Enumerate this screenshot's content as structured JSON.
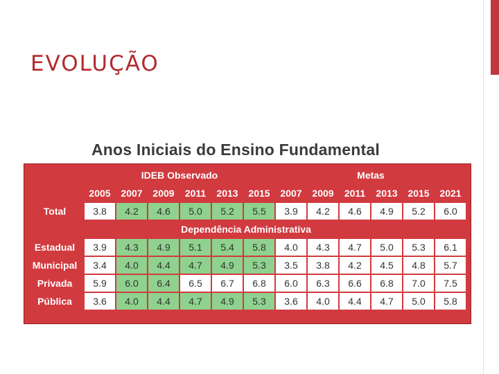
{
  "slide": {
    "title": "EVOLUÇÃO"
  },
  "table": {
    "heading": "Anos Iniciais do Ensino Fundamental",
    "group_observed": "IDEB Observado",
    "group_targets": "Metas",
    "observed_years": [
      "2005",
      "2007",
      "2009",
      "2011",
      "2013",
      "2015"
    ],
    "target_years": [
      "2007",
      "2009",
      "2011",
      "2013",
      "2015",
      "2021"
    ],
    "section_label": "Dependência Administrativa",
    "highlight_color": "#8fd18e",
    "frame_color": "#d13a3f",
    "total": {
      "label": "Total",
      "values": [
        "3.8",
        "4.2",
        "4.6",
        "5.0",
        "5.2",
        "5.5",
        "3.9",
        "4.2",
        "4.6",
        "4.9",
        "5.2",
        "6.0"
      ],
      "highlighted": [
        false,
        true,
        true,
        true,
        true,
        true,
        false,
        false,
        false,
        false,
        false,
        false
      ]
    },
    "rows": [
      {
        "label": "Estadual",
        "values": [
          "3.9",
          "4.3",
          "4.9",
          "5.1",
          "5.4",
          "5.8",
          "4.0",
          "4.3",
          "4.7",
          "5.0",
          "5.3",
          "6.1"
        ],
        "highlighted": [
          false,
          true,
          true,
          true,
          true,
          true,
          false,
          false,
          false,
          false,
          false,
          false
        ]
      },
      {
        "label": "Municipal",
        "values": [
          "3.4",
          "4.0",
          "4.4",
          "4.7",
          "4.9",
          "5.3",
          "3.5",
          "3.8",
          "4.2",
          "4.5",
          "4.8",
          "5.7"
        ],
        "highlighted": [
          false,
          true,
          true,
          true,
          true,
          true,
          false,
          false,
          false,
          false,
          false,
          false
        ]
      },
      {
        "label": "Privada",
        "values": [
          "5.9",
          "6.0",
          "6.4",
          "6.5",
          "6.7",
          "6.8",
          "6.0",
          "6.3",
          "6.6",
          "6.8",
          "7.0",
          "7.5"
        ],
        "highlighted": [
          false,
          true,
          true,
          false,
          false,
          false,
          false,
          false,
          false,
          false,
          false,
          false
        ]
      },
      {
        "label": "Pública",
        "values": [
          "3.6",
          "4.0",
          "4.4",
          "4.7",
          "4.9",
          "5.3",
          "3.6",
          "4.0",
          "4.4",
          "4.7",
          "5.0",
          "5.8"
        ],
        "highlighted": [
          false,
          true,
          true,
          true,
          true,
          true,
          false,
          false,
          false,
          false,
          false,
          false
        ]
      }
    ]
  }
}
